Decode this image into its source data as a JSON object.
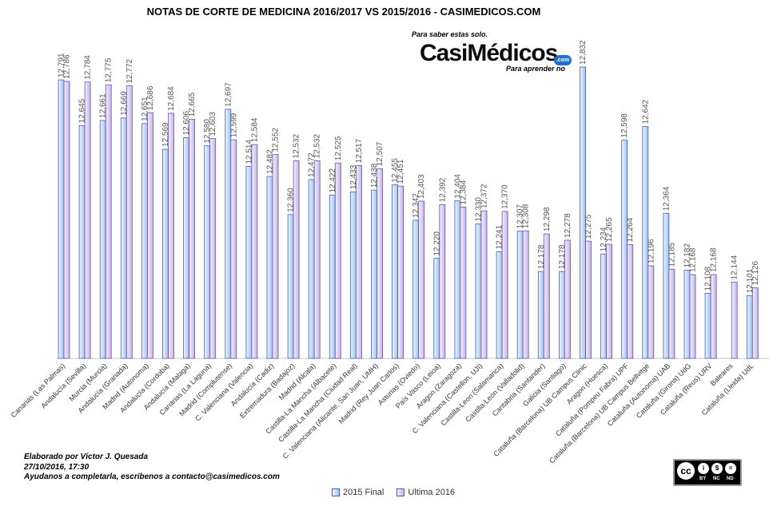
{
  "chart_data": {
    "type": "bar",
    "title": "NOTAS DE CORTE DE MEDICINA 2016/2017 VS 2015/2016 - CASIMEDICOS.COM",
    "xlabel": "",
    "ylabel": "",
    "ylim": [
      11.9,
      12.86
    ],
    "grid": false,
    "legend": "bottom-center",
    "colors": {
      "s2015": "#9fbfee",
      "s2016": "#c3b3e8",
      "outline2015": "#3b61b8",
      "outline2016": "#6a4fb0"
    },
    "categories": [
      "Canarias (Las Palmas)",
      "Andalucía (Sevilla)",
      "Murcia (Murcia)",
      "Andalucía (Granada)",
      "Madrid (Autonoma)",
      "Andalucía (Cordoba)",
      "Andalucía (Malaga)",
      "Canarias (La Laguna)",
      "Madrid (Complutense)",
      "C. Valenciana (Valencia)",
      "Andalucía (Cadiz)",
      "Extremadura (Badajoz)",
      "Madrid (Alcala)",
      "Castilla-La Mancha (Albacete)",
      "Castilla-La Mancha (Ciudad Real)",
      "C. Valenciana (Alicante, San Juan, UMH)",
      "Madrid (Rey Juan Carlos)",
      "Asturias (Oviedo)",
      "País Vasco (Leioa)",
      "Aragon (Zaragoza)",
      "C. Valenciana (Castellon, UJI)",
      "Castilla-Leon (Salamanca)",
      "Castilla-Leon (Valladolid)",
      "Cantabria (Santander)",
      "Galicia (Santiago)",
      "Cataluña (Barcelona) UB Campus Clinic",
      "Aragon (Huesca)",
      "Cataluña (Pompeu Fabra) UPF",
      "Cataluña (Barcelona) UB Campus Bellvitge",
      "Cataluña (Autonoma) UAB",
      "Cataluña (Girona) UdG",
      "Cataluña (Reus) URV",
      "Baleares",
      "Cataluña (Lleida) UdL"
    ],
    "series": [
      {
        "name": "2015 Final",
        "values": [
          12.791,
          12.645,
          12.661,
          12.669,
          12.651,
          12.569,
          12.606,
          12.58,
          12.697,
          12.514,
          12.482,
          12.36,
          12.472,
          12.422,
          12.433,
          12.438,
          12.455,
          12.342,
          12.22,
          12.404,
          12.33,
          12.241,
          12.307,
          12.178,
          12.178,
          12.832,
          12.234,
          12.598,
          12.642,
          12.364,
          12.182,
          12.108,
          null,
          12.101
        ],
        "labels": [
          "12,791",
          "12,645",
          "12,661",
          "12,669",
          "12,651",
          "12,569",
          "12,606",
          "12,580",
          "12,697",
          "12,514",
          "12,482",
          "12,360",
          "12,472",
          "12,422",
          "12,433",
          "12,438",
          "12,455",
          "12,342",
          "12,220",
          "12,404",
          "12,330",
          "12,241",
          "12,307",
          "12,178",
          "12,178",
          "12,832",
          "12,234",
          "12,598",
          "12,642",
          "12,364",
          "12,182",
          "12,108",
          "",
          "12,101"
        ]
      },
      {
        "name": "Ultima 2016",
        "values": [
          12.786,
          12.784,
          12.775,
          12.772,
          12.686,
          12.684,
          12.665,
          12.603,
          12.599,
          12.584,
          12.552,
          12.532,
          12.532,
          12.525,
          12.517,
          12.507,
          12.451,
          12.403,
          12.392,
          12.384,
          12.372,
          12.37,
          12.308,
          12.298,
          12.278,
          12.275,
          12.265,
          12.264,
          12.196,
          12.185,
          12.168,
          12.168,
          12.144,
          12.126
        ],
        "labels": [
          "12,786",
          "12,784",
          "12,775",
          "12,772",
          "12,686",
          "12,684",
          "12,665",
          "12,603",
          "12,599",
          "12,584",
          "12,552",
          "12,532",
          "12,532",
          "12,525",
          "12,517",
          "12,507",
          "12,451",
          "12,403",
          "12,392",
          "12,384",
          "12,372",
          "12,370",
          "12,308",
          "12,298",
          "12,278",
          "12,275",
          "12,265",
          "12,264",
          "12,196",
          "12,185",
          "12,168",
          "12,168",
          "12,144",
          "12,126"
        ]
      }
    ]
  },
  "logo": {
    "top_text": "Para saber estas solo.",
    "brand": "CasiMédicos",
    "bottom_text": "Para aprender no",
    "com": ".com"
  },
  "credits": {
    "line1": "Elaborado por Víctor J. Quesada",
    "line2": "27/10/2016, 17:30",
    "line3": "Ayudanos a completarla, escribenos a contacto@casimedicos.com"
  },
  "license": {
    "by": "BY",
    "nc": "NC",
    "nd": "ND",
    "cc": "cc"
  }
}
